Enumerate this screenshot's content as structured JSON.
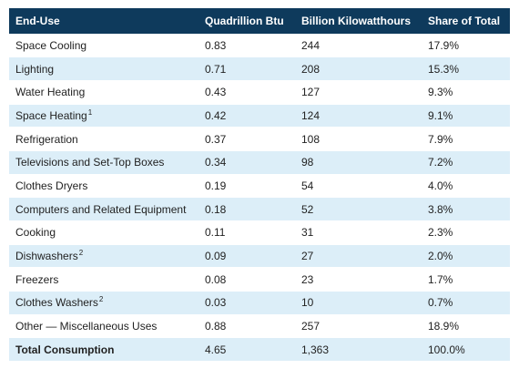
{
  "table": {
    "headers": [
      "End-Use",
      "Quadrillion Btu",
      "Billion Kilowatthours",
      "Share of Total"
    ],
    "rows": [
      {
        "end_use": "Space Cooling",
        "note": "",
        "btu": "0.83",
        "kwh": "244",
        "share": "17.9%"
      },
      {
        "end_use": "Lighting",
        "note": "",
        "btu": "0.71",
        "kwh": "208",
        "share": "15.3%"
      },
      {
        "end_use": "Water Heating",
        "note": "",
        "btu": "0.43",
        "kwh": "127",
        "share": "9.3%"
      },
      {
        "end_use": "Space Heating",
        "note": "1",
        "btu": "0.42",
        "kwh": "124",
        "share": "9.1%"
      },
      {
        "end_use": "Refrigeration",
        "note": "",
        "btu": "0.37",
        "kwh": "108",
        "share": "7.9%"
      },
      {
        "end_use": "Televisions and Set-Top Boxes",
        "note": "",
        "btu": "0.34",
        "kwh": "98",
        "share": "7.2%"
      },
      {
        "end_use": "Clothes Dryers",
        "note": "",
        "btu": "0.19",
        "kwh": "54",
        "share": "4.0%"
      },
      {
        "end_use": "Computers and Related Equipment",
        "note": "",
        "btu": "0.18",
        "kwh": "52",
        "share": "3.8%"
      },
      {
        "end_use": "Cooking",
        "note": "",
        "btu": "0.11",
        "kwh": "31",
        "share": "2.3%"
      },
      {
        "end_use": "Dishwashers",
        "note": "2",
        "btu": "0.09",
        "kwh": "27",
        "share": "2.0%"
      },
      {
        "end_use": "Freezers",
        "note": "",
        "btu": "0.08",
        "kwh": "23",
        "share": "1.7%"
      },
      {
        "end_use": "Clothes Washers",
        "note": "2",
        "btu": "0.03",
        "kwh": "10",
        "share": "0.7%"
      },
      {
        "end_use": "Other — Miscellaneous Uses",
        "note": "",
        "btu": "0.88",
        "kwh": "257",
        "share": "18.9%"
      }
    ],
    "total": {
      "end_use": "Total Consumption",
      "btu": "4.65",
      "kwh": "1,363",
      "share": "100.0%"
    }
  }
}
